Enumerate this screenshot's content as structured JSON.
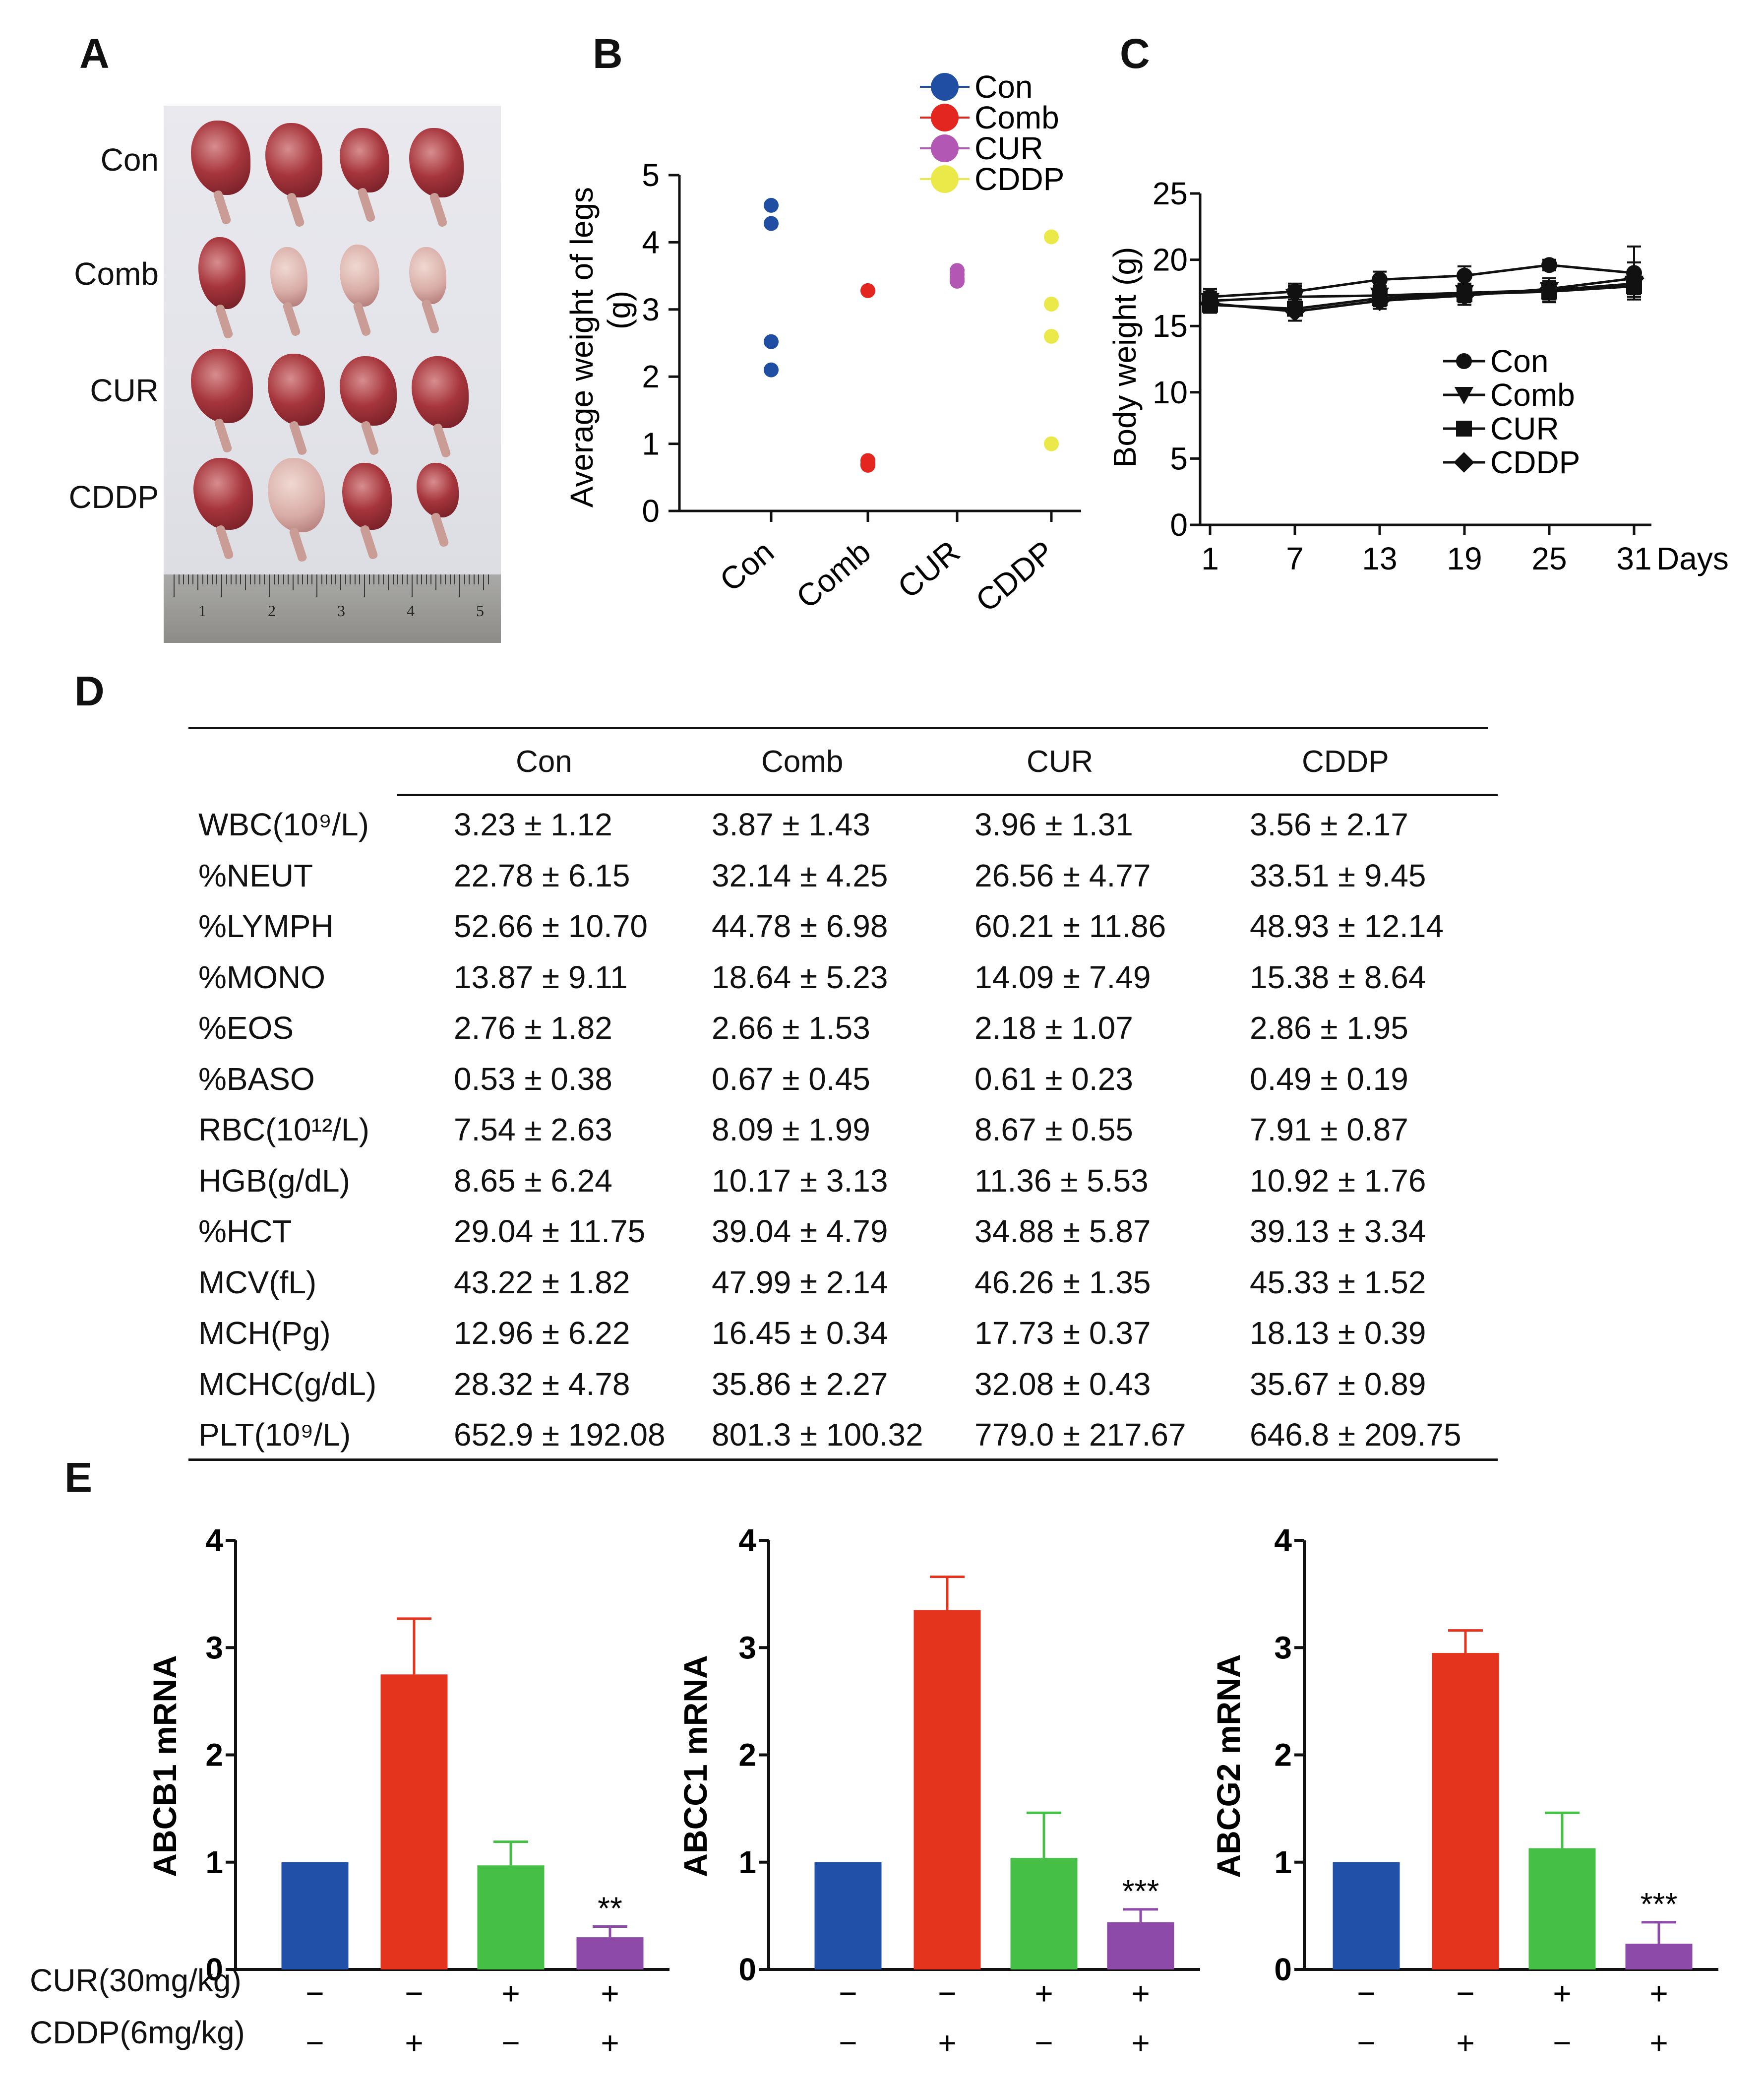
{
  "panels": {
    "A": "A",
    "B": "B",
    "C": "C",
    "D": "D",
    "E": "E"
  },
  "panel_a": {
    "rows": [
      "Con",
      "Comb",
      "CUR",
      "CDDP"
    ],
    "ruler_numbers": [
      "1",
      "2",
      "3",
      "4",
      "5"
    ]
  },
  "chart_data": [
    {
      "type": "scatter",
      "id": "B",
      "ylabel": "Average weight of legs (g)",
      "categories": [
        "Con",
        "Comb",
        "CUR",
        "CDDP"
      ],
      "ylim": [
        0,
        5
      ],
      "yticks": [
        "0",
        "1",
        "2",
        "3",
        "4",
        "5"
      ],
      "legend": [
        "Con",
        "Comb",
        "CUR",
        "CDDP"
      ],
      "series": [
        {
          "name": "Con",
          "color": "#1f4ea3",
          "values": [
            4.55,
            4.28,
            2.52,
            2.1
          ]
        },
        {
          "name": "Comb",
          "color": "#e3261f",
          "values": [
            3.28,
            0.75,
            0.7,
            0.68
          ]
        },
        {
          "name": "CUR",
          "color": "#b357b5",
          "values": [
            3.58,
            3.52,
            3.46,
            3.42
          ]
        },
        {
          "name": "CDDP",
          "color": "#ebe84a",
          "values": [
            4.08,
            3.08,
            2.6,
            1.0
          ]
        }
      ]
    },
    {
      "type": "line",
      "id": "C",
      "ylabel": "Body weight (g)",
      "xlabel": "Days",
      "x": [
        1,
        7,
        13,
        19,
        25,
        31
      ],
      "ylim": [
        0,
        25
      ],
      "yticks": [
        "0",
        "5",
        "10",
        "15",
        "20",
        "25"
      ],
      "xticks": [
        "1",
        "7",
        "13",
        "19",
        "25",
        "31"
      ],
      "series": [
        {
          "name": "Con",
          "marker": "circle",
          "values": [
            17.2,
            17.6,
            18.5,
            18.8,
            19.6,
            19.0
          ],
          "err": [
            0.6,
            0.6,
            0.6,
            0.7,
            0.4,
            2.0
          ]
        },
        {
          "name": "Comb",
          "marker": "triangle-down",
          "values": [
            16.9,
            17.2,
            17.3,
            17.5,
            17.7,
            18.2
          ],
          "err": [
            0.7,
            0.8,
            0.7,
            0.7,
            0.9,
            1.0
          ]
        },
        {
          "name": "CUR",
          "marker": "square",
          "values": [
            16.6,
            16.3,
            17.1,
            17.4,
            17.6,
            18.0
          ],
          "err": [
            0.6,
            0.9,
            0.6,
            0.6,
            0.8,
            0.8
          ]
        },
        {
          "name": "CDDP",
          "marker": "diamond",
          "values": [
            16.7,
            16.1,
            16.9,
            17.3,
            17.8,
            18.6
          ],
          "err": [
            0.5,
            0.7,
            0.6,
            0.7,
            0.8,
            1.2
          ]
        }
      ]
    },
    {
      "type": "bar",
      "id": "E1",
      "ylabel": "ABCB1 mRNA",
      "ylim": [
        0,
        4
      ],
      "yticks": [
        "0",
        "1",
        "2",
        "3",
        "4"
      ],
      "values": [
        1.0,
        2.75,
        0.97,
        0.3
      ],
      "err": [
        0,
        0.52,
        0.22,
        0.1
      ],
      "colors": [
        "#2050a8",
        "#e5341e",
        "#45bf46",
        "#8e4aa9"
      ],
      "sig": [
        "",
        "",
        "",
        "**"
      ]
    },
    {
      "type": "bar",
      "id": "E2",
      "ylabel": "ABCC1 mRNA",
      "ylim": [
        0,
        4
      ],
      "yticks": [
        "0",
        "1",
        "2",
        "3",
        "4"
      ],
      "values": [
        1.0,
        3.35,
        1.04,
        0.44
      ],
      "err": [
        0,
        0.31,
        0.42,
        0.12
      ],
      "colors": [
        "#2050a8",
        "#e5341e",
        "#45bf46",
        "#8e4aa9"
      ],
      "sig": [
        "",
        "",
        "",
        "***"
      ]
    },
    {
      "type": "bar",
      "id": "E3",
      "ylabel": "ABCG2 mRNA",
      "ylim": [
        0,
        4
      ],
      "yticks": [
        "0",
        "1",
        "2",
        "3",
        "4"
      ],
      "values": [
        1.0,
        2.95,
        1.13,
        0.24
      ],
      "err": [
        0,
        0.21,
        0.33,
        0.2
      ],
      "colors": [
        "#2050a8",
        "#e5341e",
        "#45bf46",
        "#8e4aa9"
      ],
      "sig": [
        "",
        "",
        "",
        "***"
      ]
    }
  ],
  "panel_e_conditions": {
    "cur_label": "CUR(30mg/kg)",
    "cddp_label": "CDDP(6mg/kg)",
    "cur_signs": [
      "−",
      "−",
      "+",
      "+"
    ],
    "cddp_signs": [
      "−",
      "+",
      "−",
      "+"
    ]
  },
  "table_d": {
    "headers": [
      "Con",
      "Comb",
      "CUR",
      "CDDP"
    ],
    "rows": [
      {
        "label": "WBC(10⁹/L)",
        "values": [
          "3.23 ± 1.12",
          "3.87 ± 1.43",
          "3.96 ± 1.31",
          "3.56 ± 2.17"
        ]
      },
      {
        "label": "%NEUT",
        "values": [
          "22.78 ± 6.15",
          "32.14 ± 4.25",
          "26.56 ± 4.77",
          "33.51 ± 9.45"
        ]
      },
      {
        "label": "%LYMPH",
        "values": [
          "52.66 ± 10.70",
          "44.78 ± 6.98",
          "60.21 ± 11.86",
          "48.93 ± 12.14"
        ]
      },
      {
        "label": "%MONO",
        "values": [
          "13.87 ± 9.11",
          "18.64 ± 5.23",
          "14.09 ± 7.49",
          "15.38 ± 8.64"
        ]
      },
      {
        "label": "%EOS",
        "values": [
          "2.76 ± 1.82",
          "2.66 ± 1.53",
          "2.18 ± 1.07",
          "2.86 ± 1.95"
        ]
      },
      {
        "label": "%BASO",
        "values": [
          "0.53 ± 0.38",
          "0.67 ± 0.45",
          "0.61 ± 0.23",
          "0.49 ± 0.19"
        ]
      },
      {
        "label": "RBC(10¹²/L)",
        "values": [
          "7.54 ± 2.63",
          "8.09 ± 1.99",
          "8.67 ± 0.55",
          "7.91 ± 0.87"
        ]
      },
      {
        "label": "HGB(g/dL)",
        "values": [
          "8.65 ± 6.24",
          "10.17 ± 3.13",
          "11.36 ± 5.53",
          "10.92 ± 1.76"
        ]
      },
      {
        "label": "%HCT",
        "values": [
          "29.04 ± 11.75",
          "39.04 ± 4.79",
          "34.88 ± 5.87",
          "39.13 ± 3.34"
        ]
      },
      {
        "label": "MCV(fL)",
        "values": [
          "43.22 ± 1.82",
          "47.99 ± 2.14",
          "46.26 ± 1.35",
          "45.33 ± 1.52"
        ]
      },
      {
        "label": "MCH(Pg)",
        "values": [
          "12.96 ± 6.22",
          "16.45 ± 0.34",
          "17.73 ± 0.37",
          "18.13 ± 0.39"
        ]
      },
      {
        "label": "MCHC(g/dL)",
        "values": [
          "28.32 ± 4.78",
          "35.86 ± 2.27",
          "32.08 ± 0.43",
          "35.67 ± 0.89"
        ]
      },
      {
        "label": "PLT(10⁹/L)",
        "values": [
          "652.9 ± 192.08",
          "801.3 ± 100.32",
          "779.0 ± 217.67",
          "646.8 ± 209.75"
        ]
      }
    ]
  }
}
